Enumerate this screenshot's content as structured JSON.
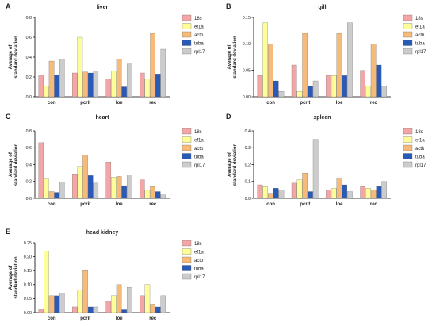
{
  "chart_data": [
    {
      "panel": "A",
      "type": "bar",
      "title": "liver",
      "ylabel": "Average of standard deviation",
      "categories": [
        "con",
        "pcrit",
        "loe",
        "rec"
      ],
      "ylim": [
        0,
        0.8
      ],
      "yticks": [
        "0.0",
        "0.2",
        "0.4",
        "0.6",
        "0.8"
      ],
      "legend_position": "right",
      "series": [
        {
          "name": "18s",
          "color": "#f4a6a6",
          "values": [
            0.22,
            0.24,
            0.18,
            0.24
          ]
        },
        {
          "name": "ef1a",
          "color": "#fdfd9a",
          "values": [
            0.11,
            0.6,
            0.26,
            0.18
          ]
        },
        {
          "name": "actb",
          "color": "#f6bb7a",
          "values": [
            0.36,
            0.25,
            0.38,
            0.64
          ]
        },
        {
          "name": "tuba",
          "color": "#2a5ab8",
          "values": [
            0.22,
            0.24,
            0.1,
            0.23
          ]
        },
        {
          "name": "rpl17",
          "color": "#cccccc",
          "values": [
            0.38,
            0.26,
            0.33,
            0.48
          ]
        }
      ]
    },
    {
      "panel": "B",
      "type": "bar",
      "title": "gill",
      "ylabel": "Average of standard deviation",
      "categories": [
        "con",
        "pcrit",
        "loe",
        "rec"
      ],
      "ylim": [
        0,
        0.15
      ],
      "yticks": [
        "0.00",
        "0.05",
        "0.10",
        "0.15"
      ],
      "legend_position": "right",
      "series": [
        {
          "name": "18s",
          "color": "#f4a6a6",
          "values": [
            0.04,
            0.06,
            0.04,
            0.05
          ]
        },
        {
          "name": "ef1a",
          "color": "#fdfd9a",
          "values": [
            0.14,
            0.01,
            0.04,
            0.02
          ]
        },
        {
          "name": "actb",
          "color": "#f6bb7a",
          "values": [
            0.1,
            0.12,
            0.12,
            0.1
          ]
        },
        {
          "name": "tuba",
          "color": "#2a5ab8",
          "values": [
            0.03,
            0.02,
            0.04,
            0.06
          ]
        },
        {
          "name": "rpl17",
          "color": "#cccccc",
          "values": [
            0.01,
            0.03,
            0.14,
            0.02
          ]
        }
      ]
    },
    {
      "panel": "C",
      "type": "bar",
      "title": "heart",
      "ylabel": "Average of standard deviation",
      "categories": [
        "con",
        "pcrit",
        "loe",
        "rec"
      ],
      "ylim": [
        0,
        0.8
      ],
      "yticks": [
        "0.0",
        "0.2",
        "0.4",
        "0.6",
        "0.8"
      ],
      "legend_position": "right",
      "series": [
        {
          "name": "18s",
          "color": "#f4a6a6",
          "values": [
            0.66,
            0.29,
            0.43,
            0.22
          ]
        },
        {
          "name": "ef1a",
          "color": "#fdfd9a",
          "values": [
            0.23,
            0.38,
            0.25,
            0.1
          ]
        },
        {
          "name": "actb",
          "color": "#f6bb7a",
          "values": [
            0.08,
            0.51,
            0.26,
            0.14
          ]
        },
        {
          "name": "tuba",
          "color": "#2a5ab8",
          "values": [
            0.07,
            0.27,
            0.15,
            0.08
          ]
        },
        {
          "name": "rpl17",
          "color": "#cccccc",
          "values": [
            0.19,
            0.18,
            0.28,
            0.04
          ]
        }
      ]
    },
    {
      "panel": "D",
      "type": "bar",
      "title": "spleen",
      "ylabel": "Average of standard deviation",
      "categories": [
        "con",
        "pcrit",
        "loe",
        "rec"
      ],
      "ylim": [
        0,
        0.4
      ],
      "yticks": [
        "0.0",
        "0.1",
        "0.2",
        "0.3",
        "0.4"
      ],
      "legend_position": "right",
      "series": [
        {
          "name": "18s",
          "color": "#f4a6a6",
          "values": [
            0.08,
            0.09,
            0.05,
            0.07
          ]
        },
        {
          "name": "ef1a",
          "color": "#fdfd9a",
          "values": [
            0.07,
            0.11,
            0.06,
            0.06
          ]
        },
        {
          "name": "actb",
          "color": "#f6bb7a",
          "values": [
            0.03,
            0.15,
            0.12,
            0.05
          ]
        },
        {
          "name": "tuba",
          "color": "#2a5ab8",
          "values": [
            0.06,
            0.04,
            0.08,
            0.07
          ]
        },
        {
          "name": "rpl17",
          "color": "#cccccc",
          "values": [
            0.05,
            0.35,
            0.04,
            0.1
          ]
        }
      ]
    },
    {
      "panel": "E",
      "type": "bar",
      "title": "head kidney",
      "ylabel": "Average of standard deviation",
      "categories": [
        "con",
        "pcrit",
        "loe",
        "rec"
      ],
      "ylim": [
        0,
        0.25
      ],
      "yticks": [
        "0.00",
        "0.05",
        "0.10",
        "0.15",
        "0.20",
        "0.25"
      ],
      "legend_position": "right",
      "series": [
        {
          "name": "18s",
          "color": "#f4a6a6",
          "values": [
            0.01,
            0.02,
            0.04,
            0.06
          ]
        },
        {
          "name": "ef1a",
          "color": "#fdfd9a",
          "values": [
            0.22,
            0.08,
            0.06,
            0.1
          ]
        },
        {
          "name": "actb",
          "color": "#f6bb7a",
          "values": [
            0.06,
            0.15,
            0.1,
            0.03
          ]
        },
        {
          "name": "tuba",
          "color": "#2a5ab8",
          "values": [
            0.06,
            0.02,
            0.01,
            0.02
          ]
        },
        {
          "name": "rpl17",
          "color": "#cccccc",
          "values": [
            0.07,
            0.02,
            0.09,
            0.06
          ]
        }
      ]
    }
  ]
}
